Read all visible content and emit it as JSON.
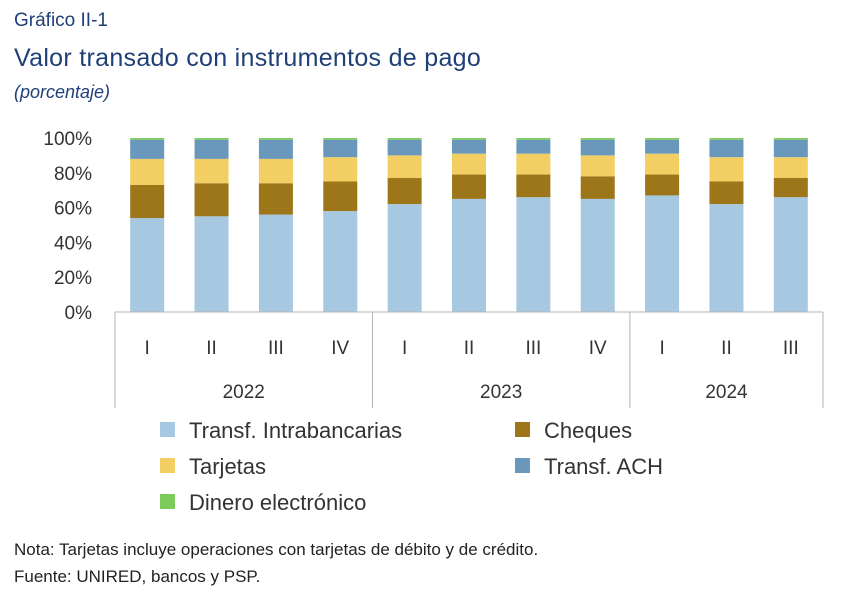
{
  "header": {
    "label": "Gráfico II-1",
    "title": "Valor transado con instrumentos de pago",
    "subtitle": "(porcentaje)"
  },
  "footer": {
    "note": "Nota: Tarjetas incluye operaciones con tarjetas de débito y de crédito.",
    "source": "Fuente: UNIRED, bancos y PSP."
  },
  "chart_data": {
    "type": "bar",
    "stacked": true,
    "ylim": [
      0,
      100
    ],
    "y_ticks": [
      "0%",
      "20%",
      "40%",
      "60%",
      "80%",
      "100%"
    ],
    "y_tick_values": [
      0,
      20,
      40,
      60,
      80,
      100
    ],
    "grid": false,
    "legend_position": "bottom",
    "categories": [
      "I",
      "II",
      "III",
      "IV",
      "I",
      "II",
      "III",
      "IV",
      "I",
      "II",
      "III"
    ],
    "groups": [
      {
        "label": "2022",
        "count": 4
      },
      {
        "label": "2023",
        "count": 4
      },
      {
        "label": "2024",
        "count": 3
      }
    ],
    "series": [
      {
        "name": "Transf. Intrabancarias",
        "color": "#a6c8e1",
        "values": [
          54,
          55,
          56,
          58,
          62,
          65,
          66,
          65,
          67,
          62,
          66
        ]
      },
      {
        "name": "Cheques",
        "color": "#9c7618",
        "values": [
          19,
          19,
          18,
          17,
          15,
          14,
          13,
          13,
          12,
          13,
          11
        ]
      },
      {
        "name": "Tarjetas",
        "color": "#f3cf63",
        "values": [
          15,
          14,
          14,
          14,
          13,
          12,
          12,
          12,
          12,
          14,
          12
        ]
      },
      {
        "name": "Transf. ACH",
        "color": "#6a98bd",
        "values": [
          11,
          11,
          11,
          10,
          9,
          8,
          8,
          9,
          8,
          10,
          10
        ]
      },
      {
        "name": "Dinero electrónico",
        "color": "#7dcb5a",
        "values": [
          1,
          1,
          1,
          1,
          1,
          1,
          1,
          1,
          1,
          1,
          1
        ]
      }
    ],
    "legend_order": [
      0,
      1,
      2,
      3,
      4
    ]
  }
}
